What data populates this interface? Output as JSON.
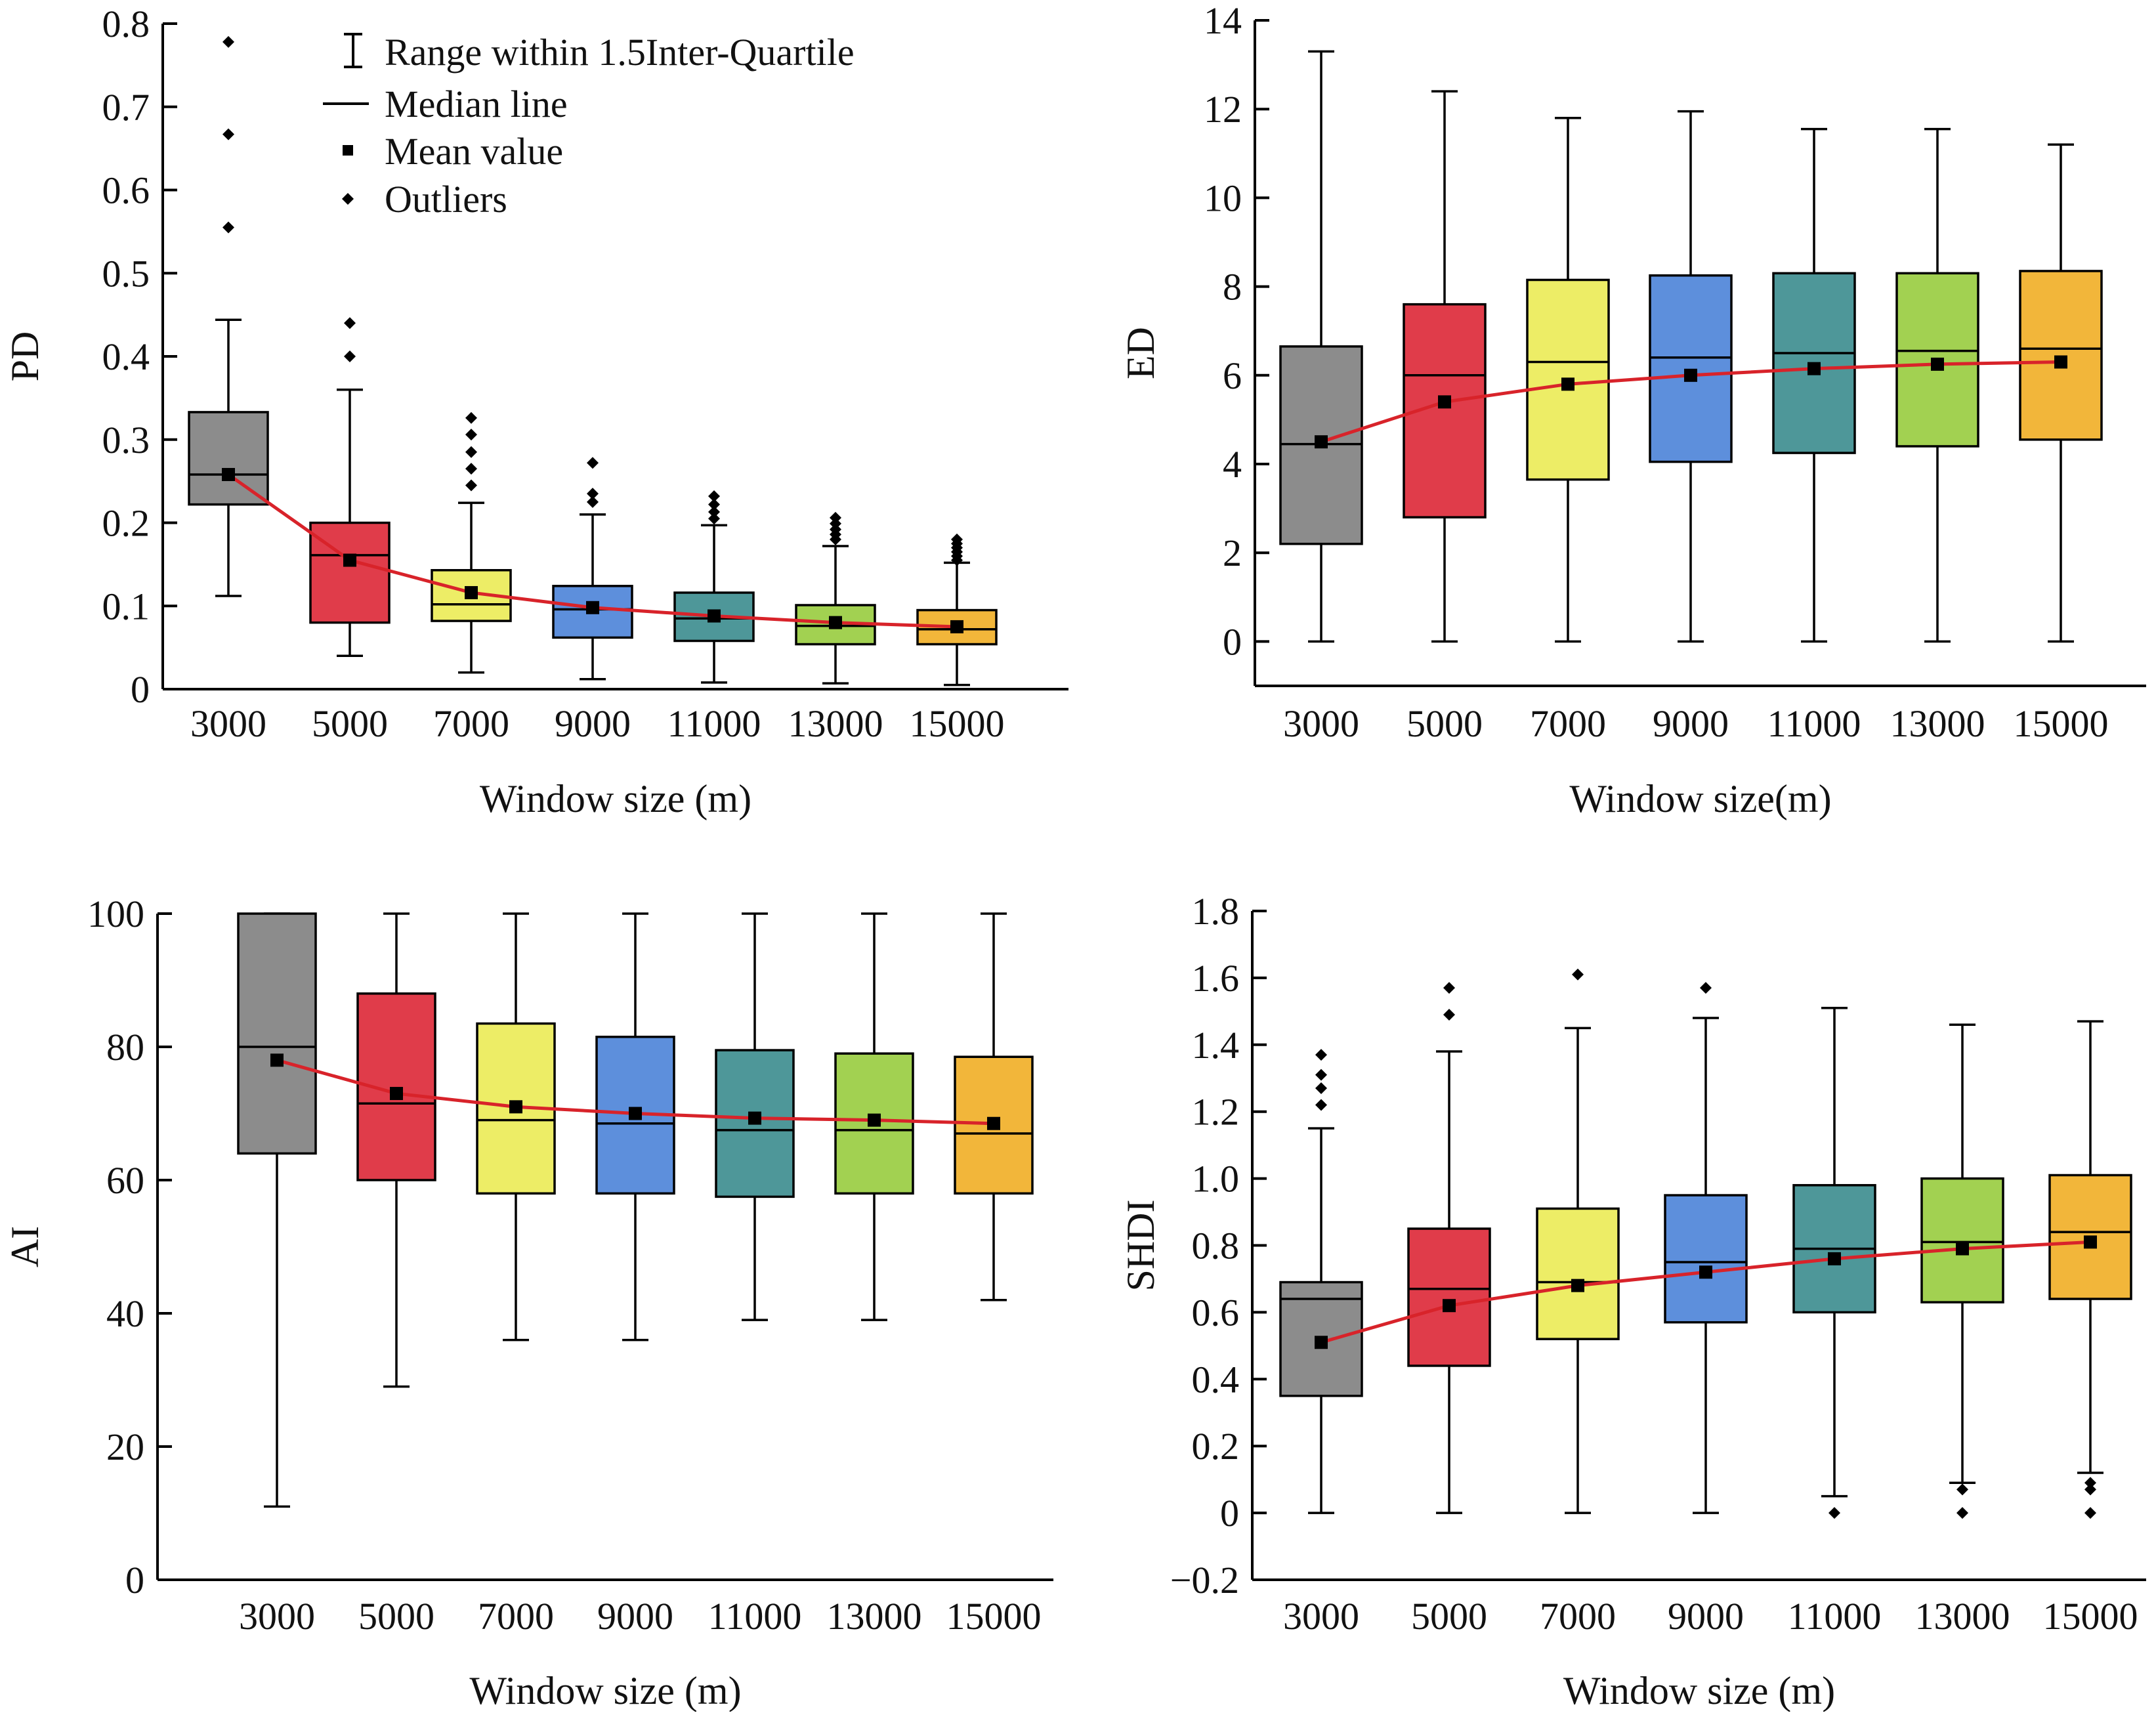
{
  "legend": {
    "range_label": "Range within 1.5Inter-Quartile",
    "median_label": "Median line",
    "mean_label": "Mean value",
    "outliers_label": "Outliers"
  },
  "box_colors": [
    "#8c8c8c",
    "#e03c4a",
    "#eded66",
    "#5d8fdc",
    "#4e9799",
    "#a2d151",
    "#f2b63a"
  ],
  "mean_line_color": "#d8232a",
  "chart_data": [
    {
      "type": "box",
      "id": "pd",
      "xlabel": "Window size (m)",
      "ylabel": "PD",
      "ylim": [
        0,
        0.8
      ],
      "yticks": [
        "0",
        "0.1",
        "0.2",
        "0.3",
        "0.4",
        "0.5",
        "0.6",
        "0.7",
        "0.8"
      ],
      "categories": [
        "3000",
        "5000",
        "7000",
        "9000",
        "11000",
        "13000",
        "15000"
      ],
      "boxes": [
        {
          "whisker_low": 0.112,
          "q1": 0.222,
          "median": 0.258,
          "q3": 0.333,
          "whisker_high": 0.444,
          "mean": 0.258,
          "outliers": [
            0.555,
            0.667,
            0.778
          ]
        },
        {
          "whisker_low": 0.04,
          "q1": 0.08,
          "median": 0.161,
          "q3": 0.2,
          "whisker_high": 0.36,
          "mean": 0.155,
          "outliers": [
            0.4,
            0.44
          ]
        },
        {
          "whisker_low": 0.02,
          "q1": 0.082,
          "median": 0.102,
          "q3": 0.143,
          "whisker_high": 0.224,
          "mean": 0.116,
          "outliers": [
            0.245,
            0.265,
            0.285,
            0.306,
            0.326
          ]
        },
        {
          "whisker_low": 0.012,
          "q1": 0.062,
          "median": 0.096,
          "q3": 0.124,
          "whisker_high": 0.21,
          "mean": 0.098,
          "outliers": [
            0.225,
            0.235,
            0.272
          ]
        },
        {
          "whisker_low": 0.008,
          "q1": 0.058,
          "median": 0.085,
          "q3": 0.116,
          "whisker_high": 0.197,
          "mean": 0.088,
          "outliers": [
            0.205,
            0.213,
            0.222,
            0.232
          ]
        },
        {
          "whisker_low": 0.007,
          "q1": 0.054,
          "median": 0.076,
          "q3": 0.101,
          "whisker_high": 0.172,
          "mean": 0.08,
          "outliers": [
            0.18,
            0.186,
            0.192,
            0.199,
            0.206
          ]
        },
        {
          "whisker_low": 0.005,
          "q1": 0.054,
          "median": 0.072,
          "q3": 0.095,
          "whisker_high": 0.152,
          "mean": 0.075,
          "outliers": [
            0.155,
            0.16,
            0.165,
            0.17,
            0.175,
            0.18
          ]
        }
      ]
    },
    {
      "type": "box",
      "id": "ed",
      "xlabel": "Window size(m)",
      "ylabel": "ED",
      "ylim": [
        -1,
        14
      ],
      "yticks": [
        "0",
        "2",
        "4",
        "6",
        "8",
        "10",
        "12",
        "14"
      ],
      "categories": [
        "3000",
        "5000",
        "7000",
        "9000",
        "11000",
        "13000",
        "15000"
      ],
      "boxes": [
        {
          "whisker_low": 0,
          "q1": 2.2,
          "median": 4.45,
          "q3": 6.65,
          "whisker_high": 13.3,
          "mean": 4.5,
          "outliers": []
        },
        {
          "whisker_low": 0,
          "q1": 2.8,
          "median": 6.0,
          "q3": 7.6,
          "whisker_high": 12.4,
          "mean": 5.4,
          "outliers": []
        },
        {
          "whisker_low": 0,
          "q1": 3.65,
          "median": 6.3,
          "q3": 8.15,
          "whisker_high": 11.8,
          "mean": 5.8,
          "outliers": []
        },
        {
          "whisker_low": 0,
          "q1": 4.05,
          "median": 6.4,
          "q3": 8.25,
          "whisker_high": 11.95,
          "mean": 6.0,
          "outliers": []
        },
        {
          "whisker_low": 0,
          "q1": 4.25,
          "median": 6.5,
          "q3": 8.3,
          "whisker_high": 11.55,
          "mean": 6.15,
          "outliers": []
        },
        {
          "whisker_low": 0,
          "q1": 4.4,
          "median": 6.55,
          "q3": 8.3,
          "whisker_high": 11.55,
          "mean": 6.25,
          "outliers": []
        },
        {
          "whisker_low": 0,
          "q1": 4.55,
          "median": 6.6,
          "q3": 8.35,
          "whisker_high": 11.2,
          "mean": 6.3,
          "outliers": []
        }
      ]
    },
    {
      "type": "box",
      "id": "ai",
      "xlabel": "Window size (m)",
      "ylabel": "AI",
      "ylim": [
        0,
        100
      ],
      "yticks": [
        "0",
        "20",
        "40",
        "60",
        "80",
        "100"
      ],
      "categories": [
        "3000",
        "5000",
        "7000",
        "9000",
        "11000",
        "13000",
        "15000"
      ],
      "boxes": [
        {
          "whisker_low": 11,
          "q1": 64,
          "median": 80,
          "q3": 100,
          "whisker_high": 100,
          "mean": 78,
          "outliers": []
        },
        {
          "whisker_low": 29,
          "q1": 60,
          "median": 71.5,
          "q3": 88,
          "whisker_high": 100,
          "mean": 73,
          "outliers": []
        },
        {
          "whisker_low": 36,
          "q1": 58,
          "median": 69,
          "q3": 83.5,
          "whisker_high": 100,
          "mean": 71,
          "outliers": []
        },
        {
          "whisker_low": 36,
          "q1": 58,
          "median": 68.5,
          "q3": 81.5,
          "whisker_high": 100,
          "mean": 70,
          "outliers": []
        },
        {
          "whisker_low": 39,
          "q1": 57.5,
          "median": 67.5,
          "q3": 79.5,
          "whisker_high": 100,
          "mean": 69.3,
          "outliers": []
        },
        {
          "whisker_low": 39,
          "q1": 58,
          "median": 67.5,
          "q3": 79,
          "whisker_high": 100,
          "mean": 69,
          "outliers": []
        },
        {
          "whisker_low": 42,
          "q1": 58,
          "median": 67,
          "q3": 78.5,
          "whisker_high": 100,
          "mean": 68.5,
          "outliers": []
        }
      ]
    },
    {
      "type": "box",
      "id": "shdi",
      "xlabel": "Window size (m)",
      "ylabel": "SHDI",
      "ylim": [
        -0.2,
        1.8
      ],
      "yticks": [
        "−0.2",
        "0",
        "0.2",
        "0.4",
        "0.6",
        "0.8",
        "1.0",
        "1.2",
        "1.4",
        "1.6",
        "1.8"
      ],
      "categories": [
        "3000",
        "5000",
        "7000",
        "9000",
        "11000",
        "13000",
        "15000"
      ],
      "boxes": [
        {
          "whisker_low": 0,
          "q1": 0.35,
          "median": 0.64,
          "q3": 0.69,
          "whisker_high": 1.15,
          "mean": 0.51,
          "outliers": [
            1.22,
            1.27,
            1.31,
            1.37
          ]
        },
        {
          "whisker_low": 0,
          "q1": 0.44,
          "median": 0.67,
          "q3": 0.85,
          "whisker_high": 1.38,
          "mean": 0.62,
          "outliers": [
            1.49,
            1.57
          ]
        },
        {
          "whisker_low": 0,
          "q1": 0.52,
          "median": 0.69,
          "q3": 0.91,
          "whisker_high": 1.45,
          "mean": 0.68,
          "outliers": [
            1.61
          ]
        },
        {
          "whisker_low": 0,
          "q1": 0.57,
          "median": 0.75,
          "q3": 0.95,
          "whisker_high": 1.48,
          "mean": 0.72,
          "outliers": [
            1.57
          ]
        },
        {
          "whisker_low": 0.05,
          "q1": 0.6,
          "median": 0.79,
          "q3": 0.98,
          "whisker_high": 1.51,
          "mean": 0.76,
          "outliers": [
            0.0
          ]
        },
        {
          "whisker_low": 0.09,
          "q1": 0.63,
          "median": 0.81,
          "q3": 1.0,
          "whisker_high": 1.46,
          "mean": 0.79,
          "outliers": [
            0.0,
            0.07
          ]
        },
        {
          "whisker_low": 0.12,
          "q1": 0.64,
          "median": 0.84,
          "q3": 1.01,
          "whisker_high": 1.47,
          "mean": 0.81,
          "outliers": [
            0.0,
            0.07,
            0.09
          ]
        }
      ]
    }
  ]
}
